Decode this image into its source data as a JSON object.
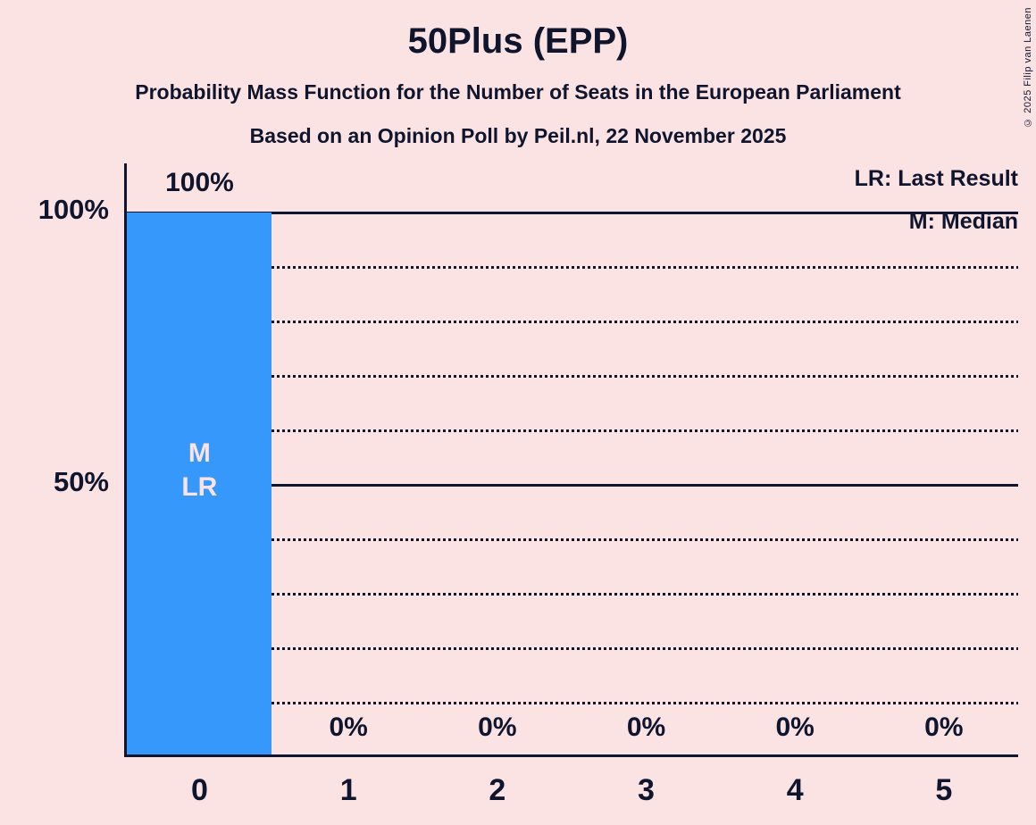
{
  "title": "50Plus (EPP)",
  "subtitle": "Probability Mass Function for the Number of Seats in the European Parliament",
  "source_line": "Based on an Opinion Poll by Peil.nl, 22 November 2025",
  "copyright": "© 2025 Filip van Laenen",
  "legend": {
    "lr": "LR: Last Result",
    "m": "M: Median"
  },
  "colors": {
    "background": "#fbe3e4",
    "bar": "#3798fc",
    "text": "#10152e",
    "bar_annotation_text": "#fbe3e4"
  },
  "chart_data": {
    "type": "bar",
    "title": "50Plus (EPP)",
    "categories": [
      "0",
      "1",
      "2",
      "3",
      "4",
      "5"
    ],
    "values": [
      100,
      0,
      0,
      0,
      0,
      0
    ],
    "bar_labels": [
      "100%",
      "0%",
      "0%",
      "0%",
      "0%",
      "0%"
    ],
    "ylim": [
      0,
      100
    ],
    "yticks": [
      100,
      50
    ],
    "ytick_labels": [
      "100%",
      "50%"
    ],
    "gridlines_solid": [
      100,
      50
    ],
    "gridlines_dotted": [
      90,
      80,
      70,
      60,
      40,
      30,
      20,
      10
    ],
    "legend_position": "top-right",
    "bar_annotations": [
      {
        "category": "0",
        "lines": [
          "M",
          "LR"
        ]
      }
    ]
  }
}
